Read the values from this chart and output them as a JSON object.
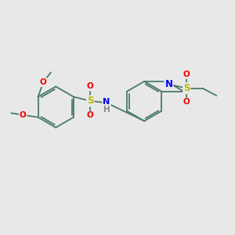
{
  "background_color": "#e8e8e8",
  "bond_color": "#4a7a6a",
  "figsize": [
    3.0,
    3.0
  ],
  "dpi": 100,
  "atoms": {
    "N_blue": "#0000ee",
    "O_red": "#ee0000",
    "S_yellow": "#bbbb00",
    "H_gray": "#888888"
  },
  "xlim": [
    0,
    10
  ],
  "ylim": [
    0,
    10
  ]
}
